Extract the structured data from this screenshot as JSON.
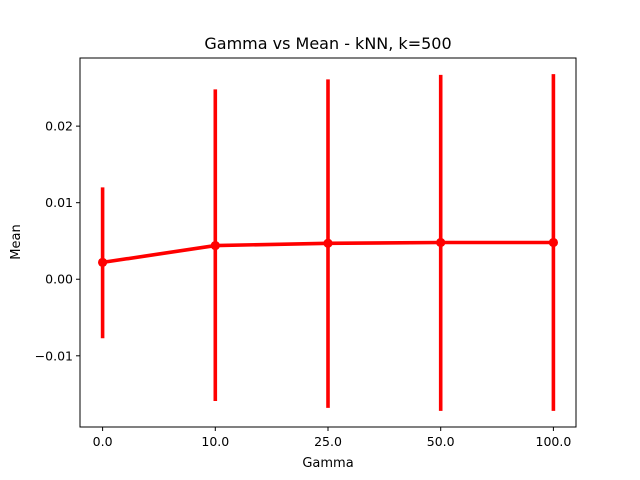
{
  "chart_data": {
    "type": "line",
    "title": "Gamma vs Mean - kNN, k=500",
    "xlabel": "Gamma",
    "ylabel": "Mean",
    "categories": [
      "0.0",
      "10.0",
      "25.0",
      "50.0",
      "100.0"
    ],
    "ylim": [
      -0.0193,
      0.0289
    ],
    "yticks": [
      -0.01,
      0.0,
      0.01,
      0.02
    ],
    "ytick_labels": [
      "−0.01",
      "0.00",
      "0.01",
      "0.02"
    ],
    "grid": false,
    "series": [
      {
        "color": "#ff0000",
        "values": [
          0.0022,
          0.0044,
          0.0047,
          0.0048,
          0.0048
        ],
        "error_low": [
          -0.0077,
          -0.0159,
          -0.0168,
          -0.0172,
          -0.0172
        ],
        "error_high": [
          0.012,
          0.0248,
          0.0261,
          0.0267,
          0.0268
        ]
      }
    ]
  }
}
